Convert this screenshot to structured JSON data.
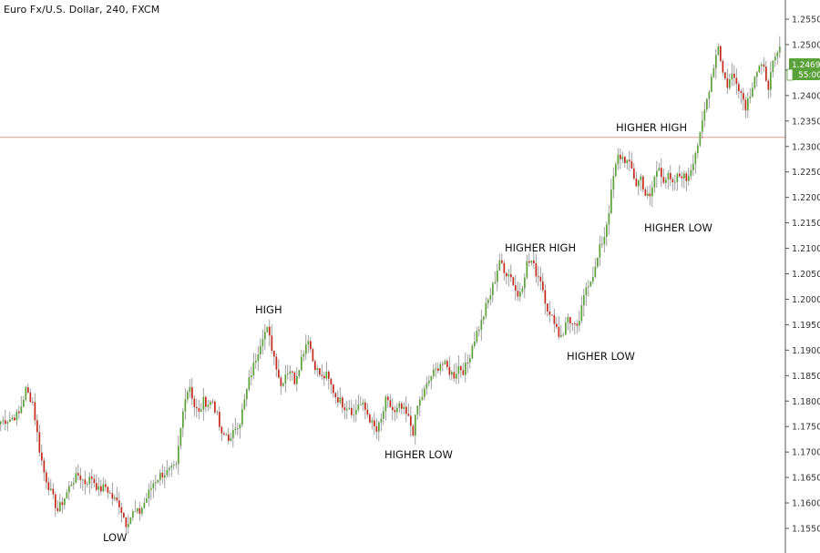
{
  "title": "Euro Fx/U.S. Dollar, 240, FXCM",
  "price_tag": "1.24693",
  "countdown_tag": "55:00",
  "colors": {
    "up": "#5aa13a",
    "down": "#c42b1c",
    "wick": "#888888",
    "hline": "#e49a8a",
    "axis": "#555555",
    "tag_bg": "#5aa13a"
  },
  "chart_data": {
    "type": "candlestick",
    "title": "Euro Fx/U.S. Dollar, 240, FXCM",
    "xlabel": "",
    "ylabel": "",
    "ylim": [
      1.1525,
      1.2585
    ],
    "y_ticks": [
      1.155,
      1.16,
      1.165,
      1.17,
      1.175,
      1.18,
      1.185,
      1.19,
      1.195,
      1.2,
      1.205,
      1.21,
      1.215,
      1.22,
      1.225,
      1.23,
      1.235,
      1.24,
      1.245,
      1.25,
      1.255
    ],
    "y_tick_labels": [
      "1.15500",
      "1.16000",
      "1.16500",
      "1.17000",
      "1.17500",
      "1.18000",
      "1.18500",
      "1.19000",
      "1.19500",
      "1.20000",
      "1.20500",
      "1.21000",
      "1.21500",
      "1.22000",
      "1.22500",
      "1.23000",
      "1.23500",
      "1.24000",
      "1.24500",
      "1.25000",
      "1.25500"
    ],
    "horizontal_line": 1.2318,
    "last_price": 1.24693,
    "close_path": [
      [
        0,
        1.176
      ],
      [
        4,
        1.1765
      ],
      [
        8,
        1.1775
      ],
      [
        11,
        1.1822
      ],
      [
        14,
        1.1798
      ],
      [
        17,
        1.1705
      ],
      [
        19,
        1.166
      ],
      [
        22,
        1.162
      ],
      [
        25,
        1.1585
      ],
      [
        28,
        1.161
      ],
      [
        31,
        1.164
      ],
      [
        34,
        1.1655
      ],
      [
        37,
        1.164
      ],
      [
        40,
        1.165
      ],
      [
        43,
        1.1625
      ],
      [
        46,
        1.1632
      ],
      [
        49,
        1.161
      ],
      [
        52,
        1.1598
      ],
      [
        55,
        1.156
      ],
      [
        58,
        1.158
      ],
      [
        61,
        1.1582
      ],
      [
        64,
        1.161
      ],
      [
        67,
        1.164
      ],
      [
        70,
        1.1655
      ],
      [
        73,
        1.166
      ],
      [
        77,
        1.167
      ],
      [
        79,
        1.1745
      ],
      [
        81,
        1.1812
      ],
      [
        83,
        1.183
      ],
      [
        85,
        1.179
      ],
      [
        87,
        1.1775
      ],
      [
        89,
        1.18
      ],
      [
        91,
        1.1795
      ],
      [
        93,
        1.18
      ],
      [
        95,
        1.177
      ],
      [
        97,
        1.173
      ],
      [
        99,
        1.1735
      ],
      [
        101,
        1.1722
      ],
      [
        103,
        1.175
      ],
      [
        105,
        1.176
      ],
      [
        107,
        1.18
      ],
      [
        109,
        1.184
      ],
      [
        111,
        1.187
      ],
      [
        113,
        1.19
      ],
      [
        115,
        1.193
      ],
      [
        117,
        1.194
      ],
      [
        119,
        1.1905
      ],
      [
        121,
        1.187
      ],
      [
        123,
        1.183
      ],
      [
        125,
        1.1855
      ],
      [
        127,
        1.1862
      ],
      [
        129,
        1.184
      ],
      [
        131,
        1.187
      ],
      [
        133,
        1.19
      ],
      [
        135,
        1.1925
      ],
      [
        137,
        1.188
      ],
      [
        139,
        1.186
      ],
      [
        141,
        1.1845
      ],
      [
        143,
        1.185
      ],
      [
        145,
        1.183
      ],
      [
        147,
        1.181
      ],
      [
        149,
        1.18
      ],
      [
        151,
        1.179
      ],
      [
        153,
        1.179
      ],
      [
        155,
        1.1772
      ],
      [
        157,
        1.1795
      ],
      [
        159,
        1.179
      ],
      [
        161,
        1.1775
      ],
      [
        163,
        1.1755
      ],
      [
        165,
        1.174
      ],
      [
        167,
        1.1762
      ],
      [
        169,
        1.18
      ],
      [
        171,
        1.179
      ],
      [
        173,
        1.1775
      ],
      [
        175,
        1.1788
      ],
      [
        177,
        1.178
      ],
      [
        179,
        1.1765
      ],
      [
        181,
        1.174
      ],
      [
        183,
        1.179
      ],
      [
        185,
        1.181
      ],
      [
        187,
        1.183
      ],
      [
        189,
        1.185
      ],
      [
        191,
        1.186
      ],
      [
        193,
        1.1875
      ],
      [
        195,
        1.187
      ],
      [
        197,
        1.1858
      ],
      [
        199,
        1.185
      ],
      [
        201,
        1.1868
      ],
      [
        203,
        1.186
      ],
      [
        205,
        1.1875
      ],
      [
        207,
        1.191
      ],
      [
        209,
        1.1935
      ],
      [
        211,
        1.1955
      ],
      [
        213,
        1.1985
      ],
      [
        215,
        1.201
      ],
      [
        217,
        1.204
      ],
      [
        219,
        1.2078
      ],
      [
        221,
        1.205
      ],
      [
        223,
        1.2055
      ],
      [
        225,
        1.2032
      ],
      [
        227,
        1.2005
      ],
      [
        229,
        1.203
      ],
      [
        231,
        1.207
      ],
      [
        233,
        1.2075
      ],
      [
        235,
        1.2052
      ],
      [
        237,
        1.204
      ],
      [
        239,
        1.2
      ],
      [
        241,
        1.1965
      ],
      [
        243,
        1.196
      ],
      [
        245,
        1.193
      ],
      [
        247,
        1.1935
      ],
      [
        249,
        1.1965
      ],
      [
        251,
        1.195
      ],
      [
        253,
        1.194
      ],
      [
        255,
        1.198
      ],
      [
        257,
        1.2025
      ],
      [
        259,
        1.204
      ],
      [
        261,
        1.206
      ],
      [
        263,
        1.21
      ],
      [
        265,
        1.2125
      ],
      [
        267,
        1.2175
      ],
      [
        269,
        1.224
      ],
      [
        271,
        1.228
      ],
      [
        273,
        1.2278
      ],
      [
        275,
        1.227
      ],
      [
        277,
        1.2255
      ],
      [
        279,
        1.2225
      ],
      [
        281,
        1.224
      ],
      [
        283,
        1.2205
      ],
      [
        285,
        1.2198
      ],
      [
        287,
        1.224
      ],
      [
        289,
        1.226
      ],
      [
        291,
        1.2235
      ],
      [
        293,
        1.224
      ],
      [
        295,
        1.2222
      ],
      [
        297,
        1.224
      ],
      [
        299,
        1.2245
      ],
      [
        301,
        1.2235
      ],
      [
        303,
        1.2258
      ],
      [
        305,
        1.229
      ],
      [
        307,
        1.232
      ],
      [
        309,
        1.237
      ],
      [
        311,
        1.2415
      ],
      [
        313,
        1.246
      ],
      [
        315,
        1.25
      ],
      [
        317,
        1.2445
      ],
      [
        319,
        1.242
      ],
      [
        321,
        1.244
      ],
      [
        323,
        1.243
      ],
      [
        325,
        1.2405
      ],
      [
        327,
        1.238
      ],
      [
        329,
        1.2405
      ],
      [
        331,
        1.244
      ],
      [
        333,
        1.2455
      ],
      [
        335,
        1.245
      ],
      [
        337,
        1.242
      ],
      [
        339,
        1.246
      ],
      [
        341,
        1.248
      ],
      [
        343,
        1.251
      ],
      [
        345,
        1.249
      ],
      [
        346,
        1.24693
      ]
    ]
  },
  "annotations": [
    {
      "label": "LOW"
    },
    {
      "label": "HIGH"
    },
    {
      "label": "HIGHER LOW"
    },
    {
      "label": "HIGHER HIGH"
    },
    {
      "label": "HIGHER LOW"
    },
    {
      "label": "HIGHER HIGH"
    },
    {
      "label": "HIGHER LOW"
    }
  ]
}
